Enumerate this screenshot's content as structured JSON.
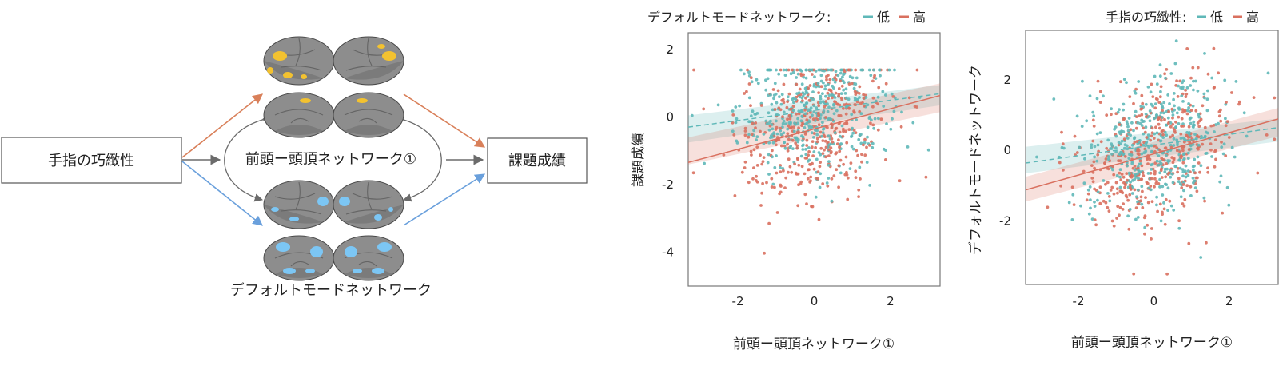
{
  "diagram": {
    "input_label": "手指の巧緻性",
    "output_label": "課題成績",
    "network_top_label": "前頭ー頭頂ネットワーク①",
    "network_bottom_label": "デフォルトモードネットワーク",
    "colors": {
      "orange_arrow": "#d9805a",
      "blue_arrow": "#6aa0dc",
      "gray_arrow": "#6b6b6b",
      "top_highlight": "#f3c230",
      "bottom_highlight": "#7cc6f4",
      "brain": "#8d8d8d"
    }
  },
  "chart_data": [
    {
      "type": "scatter",
      "title": "",
      "legend_title": "デフォルトモードネットワーク:",
      "legend_placement": "top",
      "xlabel": "前頭ー頭頂ネットワーク①",
      "ylabel": "課題成績",
      "xlim": [
        -3.3,
        3.3
      ],
      "ylim": [
        -5.0,
        2.5
      ],
      "xticks": [
        -2,
        0,
        2
      ],
      "yticks": [
        -4,
        -2,
        0,
        2
      ],
      "xtick_labels": [
        "-2",
        "0",
        "2"
      ],
      "ytick_labels": [
        "-4",
        "-2",
        "0",
        "2"
      ],
      "grid": false,
      "series": [
        {
          "name": "低",
          "color": "#5fb8b8",
          "line": "dashed",
          "fit": {
            "intercept": 0.2,
            "slope": 0.15
          },
          "band": {
            "lo_left": -0.75,
            "hi_left": 0.05,
            "lo_right": 0.35,
            "hi_right": 0.95
          },
          "points": {
            "n": 430,
            "x_mean": 0,
            "x_sd": 1.0,
            "y_noise_sd": 0.9,
            "y_min": -4.0,
            "y_max": 1.4
          }
        },
        {
          "name": "高",
          "color": "#d9705f",
          "line": "solid",
          "fit": {
            "intercept": -0.35,
            "slope": 0.3
          },
          "band": {
            "lo_left": -1.4,
            "hi_left": -0.6,
            "lo_right": 0.15,
            "hi_right": 1.0
          },
          "points": {
            "n": 430,
            "x_mean": 0,
            "x_sd": 1.0,
            "y_noise_sd": 1.1,
            "y_min": -4.4,
            "y_max": 1.4
          }
        }
      ]
    },
    {
      "type": "scatter",
      "title": "",
      "legend_title": "手指の巧緻性:",
      "legend_placement": "top-right",
      "xlabel": "前頭ー頭頂ネットワーク①",
      "ylabel": "デフォルトモードネットワーク",
      "xlim": [
        -3.4,
        3.3
      ],
      "ylim": [
        -3.8,
        3.4
      ],
      "xticks": [
        -2,
        0,
        2
      ],
      "yticks": [
        -2,
        0,
        2
      ],
      "xtick_labels": [
        "-2",
        "0",
        "2"
      ],
      "ytick_labels": [
        "-2",
        "0",
        "2"
      ],
      "grid": false,
      "series": [
        {
          "name": "低",
          "color": "#5fb8b8",
          "line": "dashed",
          "fit": {
            "intercept": 0.15,
            "slope": 0.15
          },
          "band": {
            "lo_left": -0.65,
            "hi_left": 0.1,
            "lo_right": 0.25,
            "hi_right": 0.9
          },
          "points": {
            "n": 430,
            "x_mean": 0,
            "x_sd": 1.0,
            "y_noise_sd": 0.95,
            "y_min": -3.3,
            "y_max": 3.1
          }
        },
        {
          "name": "高",
          "color": "#d9705f",
          "line": "solid",
          "fit": {
            "intercept": -0.1,
            "slope": 0.3
          },
          "band": {
            "lo_left": -1.45,
            "hi_left": -0.75,
            "lo_right": 0.4,
            "hi_right": 1.2
          },
          "points": {
            "n": 430,
            "x_mean": 0,
            "x_sd": 1.0,
            "y_noise_sd": 1.0,
            "y_min": -3.5,
            "y_max": 3.0
          }
        }
      ]
    }
  ]
}
